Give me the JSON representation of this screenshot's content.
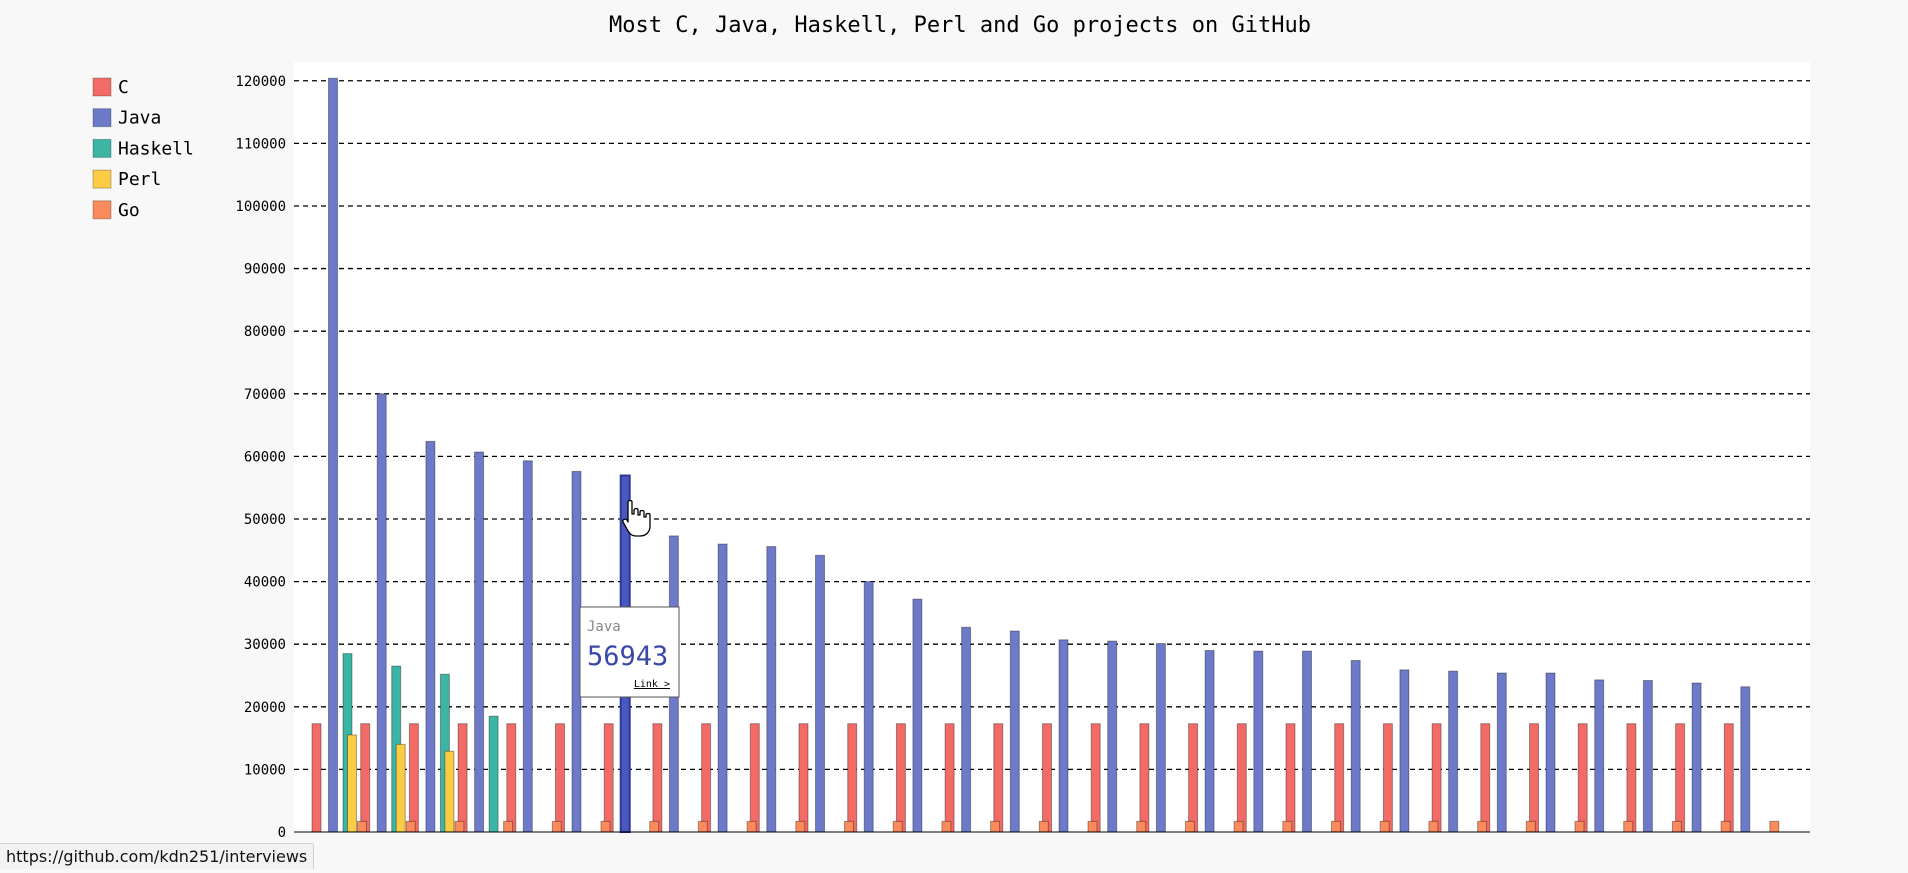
{
  "chart_data": {
    "type": "bar",
    "title": "Most C, Java, Haskell, Perl and Go projects on GitHub",
    "xlabel": "",
    "ylabel": "",
    "ylim": [
      0,
      123000
    ],
    "yticks": [
      0,
      10000,
      20000,
      30000,
      40000,
      50000,
      60000,
      70000,
      80000,
      90000,
      100000,
      110000,
      120000
    ],
    "grid": true,
    "legend_position": "top-left",
    "category_count": 30,
    "series": [
      {
        "name": "C",
        "color": "#f36b66",
        "values": [
          17300,
          17300,
          17300,
          17300,
          17300,
          17300,
          17300,
          17300,
          17300,
          17300,
          17300,
          17300,
          17300,
          17300,
          17300,
          17300,
          17300,
          17300,
          17300,
          17300,
          17300,
          17300,
          17300,
          17300,
          17300,
          17300,
          17300,
          17300,
          17300,
          17300
        ]
      },
      {
        "name": "Java",
        "color": "#6c7ac9",
        "values": [
          120400,
          70000,
          62400,
          60700,
          59300,
          57600,
          56943,
          47300,
          46000,
          45600,
          44200,
          40000,
          37200,
          32700,
          32100,
          30700,
          30500,
          30100,
          29000,
          28900,
          28900,
          27400,
          25900,
          25700,
          25400,
          25400,
          24300,
          24200,
          23800,
          23200
        ]
      },
      {
        "name": "Haskell",
        "color": "#3db5a5",
        "values": [
          28500,
          26500,
          25200,
          18500,
          null,
          null,
          null,
          null,
          null,
          null,
          null,
          null,
          null,
          null,
          null,
          null,
          null,
          null,
          null,
          null,
          null,
          null,
          null,
          null,
          null,
          null,
          null,
          null,
          null,
          null
        ]
      },
      {
        "name": "Perl",
        "color": "#fccc44",
        "values": [
          15500,
          14000,
          12900,
          null,
          null,
          null,
          null,
          null,
          null,
          null,
          null,
          null,
          null,
          null,
          null,
          null,
          null,
          null,
          null,
          null,
          null,
          null,
          null,
          null,
          null,
          null,
          null,
          null,
          null,
          null
        ]
      },
      {
        "name": "Go",
        "color": "#fb8a5c",
        "values": [
          1700,
          1700,
          1700,
          1700,
          1700,
          1700,
          1700,
          1700,
          1700,
          1700,
          1700,
          1700,
          1700,
          1700,
          1700,
          1700,
          1700,
          1700,
          1700,
          1700,
          1700,
          1700,
          1700,
          1700,
          1700,
          1700,
          1700,
          1700,
          1700,
          1700
        ]
      }
    ],
    "tooltip": {
      "series": "Java",
      "value": "56943",
      "link_label": "Link >",
      "category_index": 6
    }
  },
  "status_bar": {
    "url": "https://github.com/kdn251/interviews"
  }
}
